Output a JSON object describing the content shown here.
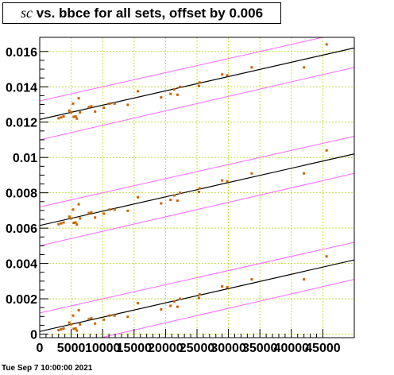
{
  "title": {
    "italic_part": "sc",
    "rest": " vs. bbce for all sets, offset by 0.006"
  },
  "footer_timestamp": "Tue Sep  7 10:00:00 2021",
  "chart_data": {
    "type": "scatter",
    "title": "sc vs. bbce for all sets, offset by 0.006",
    "xlabel": "",
    "ylabel": "",
    "xlim": [
      0,
      50000
    ],
    "ylim": [
      -0.0002,
      0.0168
    ],
    "grid": true,
    "x_ticks": [
      0,
      5000,
      10000,
      15000,
      20000,
      25000,
      30000,
      35000,
      40000,
      45000
    ],
    "x_tick_labels": [
      "0",
      "5000",
      "10000",
      "15000",
      "20000",
      "25000",
      "30000",
      "35000",
      "40000",
      "45000"
    ],
    "y_ticks": [
      0,
      0.002,
      0.004,
      0.006,
      0.008,
      0.01,
      0.012,
      0.014,
      0.016
    ],
    "y_tick_labels": [
      "0",
      "0.002",
      "0.004",
      "0.006",
      "0.008",
      "0.01",
      "0.012",
      "0.014",
      "0.016"
    ],
    "offset": 0.006,
    "colors": {
      "points": "#c86400",
      "fit": "#000000",
      "band": "#ff66ff",
      "grid": "#c8dc3c"
    },
    "series": [
      {
        "points": [
          [
            3000,
            0.00022
          ],
          [
            3400,
            0.00027
          ],
          [
            3800,
            0.00032
          ],
          [
            4700,
            0.00065
          ],
          [
            5000,
            0.00055
          ],
          [
            5300,
            0.00105
          ],
          [
            5400,
            0.0003
          ],
          [
            5700,
            0.00032
          ],
          [
            5900,
            0.0002
          ],
          [
            6200,
            0.00135
          ],
          [
            6400,
            0.00055
          ],
          [
            7800,
            0.00085
          ],
          [
            8200,
            0.0009
          ],
          [
            8800,
            0.0006
          ],
          [
            10200,
            0.00082
          ],
          [
            11100,
            0.00105
          ],
          [
            11900,
            0.00105
          ],
          [
            14000,
            0.00098
          ],
          [
            15600,
            0.00175
          ],
          [
            19300,
            0.0014
          ],
          [
            20800,
            0.0016
          ],
          [
            21400,
            0.00185
          ],
          [
            21900,
            0.00155
          ],
          [
            22300,
            0.002
          ],
          [
            25300,
            0.00205
          ],
          [
            25400,
            0.00225
          ],
          [
            29000,
            0.0027
          ],
          [
            29800,
            0.00265
          ],
          [
            33700,
            0.0031
          ],
          [
            42000,
            0.0031
          ],
          [
            45600,
            0.0044
          ]
        ],
        "fit": [
          0,
          0.00015,
          50000,
          0.0042
        ],
        "band_upper": [
          0,
          0.0012,
          50000,
          0.0052
        ],
        "band_lower": [
          0,
          -0.001,
          50000,
          0.0031
        ]
      },
      {
        "points": [
          [
            3000,
            0.00622
          ],
          [
            3400,
            0.00627
          ],
          [
            3800,
            0.00632
          ],
          [
            4700,
            0.00665
          ],
          [
            5000,
            0.00655
          ],
          [
            5300,
            0.00705
          ],
          [
            5400,
            0.0063
          ],
          [
            5700,
            0.00632
          ],
          [
            5900,
            0.0062
          ],
          [
            6200,
            0.00735
          ],
          [
            6400,
            0.00655
          ],
          [
            7800,
            0.00685
          ],
          [
            8200,
            0.0069
          ],
          [
            8800,
            0.0066
          ],
          [
            10200,
            0.00682
          ],
          [
            11100,
            0.00705
          ],
          [
            11900,
            0.00705
          ],
          [
            14000,
            0.00698
          ],
          [
            15600,
            0.00775
          ],
          [
            19300,
            0.0074
          ],
          [
            20800,
            0.0076
          ],
          [
            21400,
            0.00785
          ],
          [
            21900,
            0.00755
          ],
          [
            22300,
            0.008
          ],
          [
            25300,
            0.00805
          ],
          [
            25400,
            0.00825
          ],
          [
            29000,
            0.0087
          ],
          [
            29800,
            0.00865
          ],
          [
            33700,
            0.0091
          ],
          [
            42000,
            0.0091
          ],
          [
            45600,
            0.0104
          ]
        ],
        "fit": [
          0,
          0.00615,
          50000,
          0.0102
        ],
        "band_upper": [
          0,
          0.0072,
          50000,
          0.0112
        ],
        "band_lower": [
          0,
          0.005,
          50000,
          0.0091
        ]
      },
      {
        "points": [
          [
            3000,
            0.01222
          ],
          [
            3400,
            0.01227
          ],
          [
            3800,
            0.01232
          ],
          [
            4700,
            0.01265
          ],
          [
            5000,
            0.01255
          ],
          [
            5300,
            0.01305
          ],
          [
            5400,
            0.0123
          ],
          [
            5700,
            0.01232
          ],
          [
            5900,
            0.0122
          ],
          [
            6200,
            0.01335
          ],
          [
            6400,
            0.01255
          ],
          [
            7800,
            0.01285
          ],
          [
            8200,
            0.0129
          ],
          [
            8800,
            0.0126
          ],
          [
            10200,
            0.01282
          ],
          [
            11100,
            0.01305
          ],
          [
            11900,
            0.01305
          ],
          [
            14000,
            0.01298
          ],
          [
            15600,
            0.01375
          ],
          [
            19300,
            0.0134
          ],
          [
            20800,
            0.0136
          ],
          [
            21400,
            0.01385
          ],
          [
            21900,
            0.01355
          ],
          [
            22300,
            0.014
          ],
          [
            25300,
            0.01405
          ],
          [
            25400,
            0.01425
          ],
          [
            29000,
            0.0147
          ],
          [
            29800,
            0.01465
          ],
          [
            33700,
            0.0151
          ],
          [
            42000,
            0.0151
          ],
          [
            45600,
            0.0164
          ]
        ],
        "fit": [
          0,
          0.01215,
          50000,
          0.0162
        ],
        "band_upper": [
          0,
          0.0132,
          50000,
          0.0172
        ],
        "band_lower": [
          0,
          0.011,
          50000,
          0.0151
        ]
      }
    ]
  }
}
